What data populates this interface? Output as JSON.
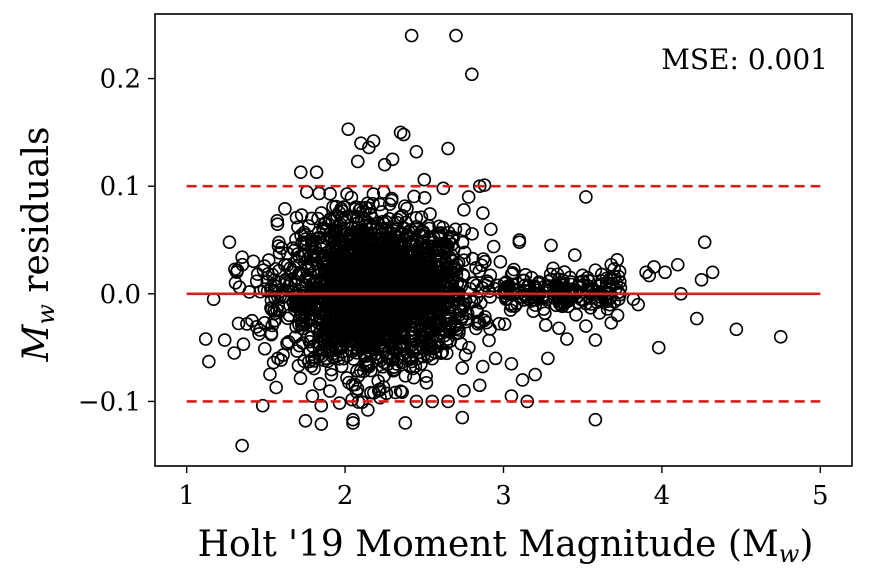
{
  "chart_data": {
    "type": "scatter",
    "title": "",
    "xlabel": "Holt '19 Moment Magnitude (M",
    "xlabel_sub": "w",
    "xlabel_close": ")",
    "ylabel": " residuals",
    "ylabel_var": "M",
    "ylabel_sub": "w",
    "annotation": "MSE: 0.001",
    "xlim": [
      0.8,
      5.2
    ],
    "ylim": [
      -0.16,
      0.26
    ],
    "xticks": [
      1,
      2,
      3,
      4,
      5
    ],
    "xtick_labels": [
      "1",
      "2",
      "3",
      "4",
      "5"
    ],
    "yticks": [
      -0.1,
      0.0,
      0.1,
      0.2
    ],
    "ytick_labels": [
      "−0.1",
      "0.0",
      "0.1",
      "0.2"
    ],
    "grid": false,
    "legend": "none",
    "reference_lines": [
      {
        "y": 0.0,
        "x_from": 1,
        "x_to": 5,
        "style": "solid",
        "color": "#d62020"
      },
      {
        "y": 0.1,
        "x_from": 1,
        "x_to": 5,
        "style": "dashed",
        "color": "#d62020"
      },
      {
        "y": -0.1,
        "x_from": 1,
        "x_to": 5,
        "style": "dashed",
        "color": "#d62020"
      }
    ],
    "marker": {
      "shape": "open-circle",
      "edge_color": "#000000"
    },
    "points": [
      [
        2.42,
        0.24
      ],
      [
        2.7,
        0.24
      ],
      [
        2.8,
        0.204
      ],
      [
        2.02,
        0.153
      ],
      [
        2.35,
        0.15
      ],
      [
        2.37,
        0.148
      ],
      [
        2.18,
        0.142
      ],
      [
        2.1,
        0.14
      ],
      [
        2.15,
        0.136
      ],
      [
        2.65,
        0.135
      ],
      [
        2.45,
        0.132
      ],
      [
        2.3,
        0.125
      ],
      [
        2.25,
        0.12
      ],
      [
        2.08,
        0.123
      ],
      [
        1.72,
        0.113
      ],
      [
        1.82,
        0.113
      ],
      [
        2.5,
        0.106
      ],
      [
        2.85,
        0.1
      ],
      [
        2.88,
        0.101
      ],
      [
        2.62,
        0.098
      ],
      [
        2.78,
        0.09
      ],
      [
        3.52,
        0.09
      ],
      [
        2.75,
        0.078
      ],
      [
        2.87,
        0.075
      ],
      [
        1.62,
        0.079
      ],
      [
        2.92,
        0.06
      ],
      [
        3.1,
        0.05
      ],
      [
        3.1,
        0.048
      ],
      [
        3.3,
        0.045
      ],
      [
        3.45,
        0.036
      ],
      [
        4.27,
        0.048
      ],
      [
        3.58,
        0.022
      ],
      [
        3.68,
        0.027
      ],
      [
        3.62,
        0.018
      ],
      [
        3.7,
        0.016
      ],
      [
        3.9,
        0.02
      ],
      [
        3.92,
        0.017
      ],
      [
        3.95,
        0.025
      ],
      [
        4.02,
        0.02
      ],
      [
        4.1,
        0.027
      ],
      [
        4.25,
        0.013
      ],
      [
        4.32,
        0.02
      ],
      [
        4.12,
        0.0
      ],
      [
        3.82,
        -0.005
      ],
      [
        3.85,
        -0.01
      ],
      [
        3.72,
        -0.02
      ],
      [
        3.68,
        -0.027
      ],
      [
        3.58,
        -0.043
      ],
      [
        3.52,
        -0.03
      ],
      [
        3.35,
        -0.032
      ],
      [
        3.4,
        -0.042
      ],
      [
        3.28,
        -0.06
      ],
      [
        3.2,
        -0.075
      ],
      [
        3.12,
        -0.08
      ],
      [
        3.05,
        -0.065
      ],
      [
        2.95,
        -0.06
      ],
      [
        2.85,
        -0.085
      ],
      [
        2.75,
        -0.09
      ],
      [
        2.65,
        -0.1
      ],
      [
        2.55,
        -0.1
      ],
      [
        2.45,
        -0.1
      ],
      [
        3.05,
        -0.095
      ],
      [
        3.15,
        -0.1
      ],
      [
        3.98,
        -0.05
      ],
      [
        4.22,
        -0.023
      ],
      [
        4.47,
        -0.033
      ],
      [
        4.75,
        -0.04
      ],
      [
        3.58,
        -0.117
      ],
      [
        2.74,
        -0.115
      ],
      [
        2.38,
        -0.12
      ],
      [
        1.35,
        -0.141
      ],
      [
        2.05,
        -0.12
      ],
      [
        2.05,
        -0.117
      ],
      [
        1.85,
        -0.121
      ],
      [
        1.75,
        -0.118
      ],
      [
        1.12,
        -0.042
      ],
      [
        1.14,
        -0.063
      ],
      [
        1.24,
        -0.043
      ],
      [
        1.17,
        -0.005
      ],
      [
        1.27,
        0.048
      ],
      [
        1.3,
        -0.055
      ],
      [
        1.48,
        -0.104
      ],
      [
        1.32,
        0.022
      ],
      [
        1.35,
        0.034
      ],
      [
        1.38,
        -0.028
      ]
    ],
    "point_cloud_core": {
      "x_center": 2.2,
      "x_spread": 0.35,
      "y_spread": 0.035,
      "note": "dense overlapping cluster"
    }
  }
}
